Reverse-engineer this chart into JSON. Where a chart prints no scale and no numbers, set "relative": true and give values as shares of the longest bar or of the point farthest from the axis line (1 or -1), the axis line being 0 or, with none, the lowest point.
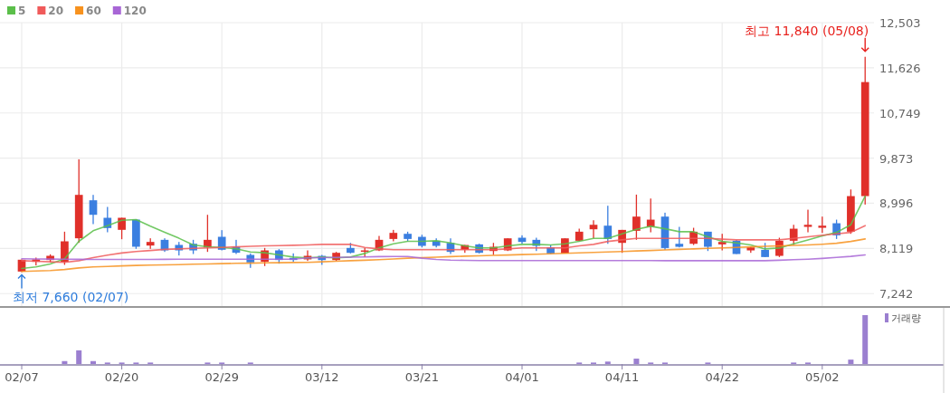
{
  "chart_data": [
    {
      "type": "candlestick",
      "categories": [
        "02/07",
        null,
        null,
        null,
        null,
        null,
        null,
        "02/20",
        null,
        null,
        null,
        null,
        null,
        null,
        "02/29",
        null,
        null,
        null,
        null,
        null,
        null,
        "03/12",
        null,
        null,
        null,
        null,
        null,
        null,
        "03/21",
        null,
        null,
        null,
        null,
        null,
        null,
        "04/01",
        null,
        null,
        null,
        null,
        null,
        null,
        "04/11",
        null,
        null,
        null,
        null,
        null,
        null,
        "04/22",
        null,
        null,
        null,
        null,
        null,
        null,
        "05/02",
        null,
        null,
        null
      ],
      "ohlc": [
        [
          7670,
          7905,
          7660,
          7900
        ],
        [
          7859,
          7941,
          7789,
          7906
        ],
        [
          7894,
          8005,
          7847,
          7976
        ],
        [
          7859,
          8444,
          7800,
          8257
        ],
        [
          8316,
          9850,
          8228,
          9159
        ],
        [
          9054,
          9159,
          8591,
          8772
        ],
        [
          8714,
          8925,
          8433,
          8515
        ],
        [
          8480,
          8714,
          8298,
          8714
        ],
        [
          8679,
          8679,
          8111,
          8152
        ],
        [
          8175,
          8316,
          8111,
          8245
        ],
        [
          8286,
          8316,
          8052,
          8081
        ],
        [
          8187,
          8245,
          7982,
          8081
        ],
        [
          8210,
          8286,
          8011,
          8081
        ],
        [
          8140,
          8772,
          8052,
          8286
        ],
        [
          8345,
          8474,
          8081,
          8093
        ],
        [
          8152,
          8286,
          8011,
          8035
        ],
        [
          7993,
          8023,
          7742,
          7847
        ],
        [
          7859,
          8128,
          7777,
          8081
        ],
        [
          8081,
          8105,
          7824,
          7894
        ],
        [
          7935,
          8023,
          7859,
          7894
        ],
        [
          7906,
          8081,
          7876,
          7976
        ],
        [
          7975,
          7993,
          7800,
          7893
        ],
        [
          7893,
          8052,
          7876,
          8034
        ],
        [
          8128,
          8227,
          8022,
          8034
        ],
        [
          8058,
          8128,
          7952,
          8081
        ],
        [
          8081,
          8362,
          8069,
          8286
        ],
        [
          8303,
          8479,
          8257,
          8421
        ],
        [
          8403,
          8444,
          8257,
          8303
        ],
        [
          8344,
          8385,
          8139,
          8169
        ],
        [
          8268,
          8315,
          8139,
          8169
        ],
        [
          8227,
          8315,
          8011,
          8052
        ],
        [
          8093,
          8186,
          8034,
          8186
        ],
        [
          8198,
          8210,
          8022,
          8034
        ],
        [
          8069,
          8227,
          7993,
          8151
        ],
        [
          8081,
          8315,
          8069,
          8315
        ],
        [
          8327,
          8374,
          8210,
          8245
        ],
        [
          8286,
          8327,
          8069,
          8169
        ],
        [
          8139,
          8186,
          8011,
          8022
        ],
        [
          8022,
          8315,
          8022,
          8315
        ],
        [
          8268,
          8503,
          8257,
          8444
        ],
        [
          8491,
          8666,
          8315,
          8578
        ],
        [
          8561,
          8948,
          8209,
          8303
        ],
        [
          8227,
          8479,
          8034,
          8479
        ],
        [
          8461,
          9164,
          8286,
          8737
        ],
        [
          8538,
          9088,
          8432,
          8678
        ],
        [
          8737,
          8813,
          8092,
          8127
        ],
        [
          8209,
          8538,
          8139,
          8151
        ],
        [
          8209,
          8520,
          8186,
          8444
        ],
        [
          8444,
          8444,
          8069,
          8151
        ],
        [
          8198,
          8403,
          8081,
          8245
        ],
        [
          8268,
          8286,
          8011,
          8011
        ],
        [
          8081,
          8151,
          8034,
          8139
        ],
        [
          8092,
          8227,
          7952,
          7952
        ],
        [
          7975,
          8327,
          7952,
          8268
        ],
        [
          8268,
          8578,
          8186,
          8502
        ],
        [
          8538,
          8871,
          8432,
          8578
        ],
        [
          8520,
          8737,
          8420,
          8561
        ],
        [
          8608,
          8678,
          8303,
          8374
        ],
        [
          8444,
          9264,
          8403,
          9135
        ],
        [
          9135,
          11840,
          8971,
          11349
        ]
      ],
      "colors": [
        "#e0302a",
        "#e0302a",
        "#e0302a",
        "#e0302a",
        "#e0302a",
        "#3b7fe0",
        "#3b7fe0",
        "#e0302a",
        "#3b7fe0",
        "#e0302a",
        "#3b7fe0",
        "#3b7fe0",
        "#3b7fe0",
        "#e0302a",
        "#3b7fe0",
        "#3b7fe0",
        "#3b7fe0",
        "#e0302a",
        "#3b7fe0",
        "#3b7fe0",
        "#e0302a",
        "#3b7fe0",
        "#e0302a",
        "#3b7fe0",
        "#e0302a",
        "#e0302a",
        "#e0302a",
        "#3b7fe0",
        "#3b7fe0",
        "#3b7fe0",
        "#3b7fe0",
        "#e0302a",
        "#3b7fe0",
        "#e0302a",
        "#e0302a",
        "#3b7fe0",
        "#3b7fe0",
        "#3b7fe0",
        "#e0302a",
        "#e0302a",
        "#e0302a",
        "#3b7fe0",
        "#e0302a",
        "#e0302a",
        "#e0302a",
        "#3b7fe0",
        "#3b7fe0",
        "#e0302a",
        "#3b7fe0",
        "#e0302a",
        "#3b7fe0",
        "#e0302a",
        "#3b7fe0",
        "#e0302a",
        "#e0302a",
        "#e0302a",
        "#e0302a",
        "#3b7fe0",
        "#e0302a",
        "#e0302a"
      ],
      "series": [
        {
          "name": "5",
          "type": "line",
          "color": "#5bbf4a",
          "values": [
            7730,
            7760,
            7818,
            7917,
            8257,
            8462,
            8561,
            8667,
            8679,
            8550,
            8433,
            8316,
            8187,
            8152,
            8140,
            8111,
            8052,
            8035,
            7993,
            7952,
            7935,
            7952,
            7935,
            7952,
            8022,
            8128,
            8210,
            8257,
            8257,
            8268,
            8227,
            8169,
            8128,
            8128,
            8169,
            8198,
            8198,
            8186,
            8210,
            8257,
            8315,
            8315,
            8403,
            8491,
            8549,
            8502,
            8444,
            8444,
            8345,
            8256,
            8227,
            8186,
            8110,
            8127,
            8209,
            8286,
            8362,
            8432,
            8578,
            9135
          ]
        },
        {
          "name": "20",
          "type": "line",
          "color": "#f05a5a",
          "values": [
            7880,
            7870,
            7860,
            7850,
            7880,
            7940,
            7990,
            8030,
            8060,
            8080,
            8100,
            8110,
            8120,
            8130,
            8140,
            8150,
            8160,
            8170,
            8175,
            8180,
            8187,
            8198,
            8198,
            8198,
            8139,
            8110,
            8093,
            8093,
            8093,
            8093,
            8093,
            8093,
            8093,
            8093,
            8110,
            8128,
            8128,
            8128,
            8128,
            8169,
            8198,
            8256,
            8286,
            8315,
            8315,
            8315,
            8315,
            8315,
            8315,
            8300,
            8286,
            8286,
            8286,
            8286,
            8315,
            8345,
            8374,
            8403,
            8432,
            8561
          ]
        },
        {
          "name": "60",
          "type": "line",
          "color": "#f7921e",
          "values": [
            7671,
            7680,
            7690,
            7710,
            7740,
            7760,
            7770,
            7780,
            7789,
            7795,
            7800,
            7806,
            7812,
            7818,
            7824,
            7829,
            7834,
            7838,
            7842,
            7845,
            7850,
            7860,
            7870,
            7880,
            7890,
            7900,
            7915,
            7930,
            7940,
            7950,
            7960,
            7968,
            7976,
            7984,
            7992,
            8000,
            8008,
            8016,
            8024,
            8032,
            8040,
            8050,
            8060,
            8070,
            8080,
            8090,
            8100,
            8110,
            8120,
            8130,
            8139,
            8150,
            8160,
            8170,
            8178,
            8186,
            8200,
            8220,
            8256,
            8303
          ]
        },
        {
          "name": "120",
          "type": "line",
          "color": "#a866d6",
          "values": [
            7917,
            7915,
            7912,
            7910,
            7908,
            7906,
            7905,
            7905,
            7905,
            7905,
            7908,
            7910,
            7910,
            7910,
            7910,
            7910,
            7910,
            7910,
            7910,
            7910,
            7935,
            7940,
            7945,
            7950,
            7955,
            7960,
            7962,
            7964,
            7930,
            7905,
            7893,
            7888,
            7885,
            7885,
            7885,
            7885,
            7885,
            7885,
            7885,
            7885,
            7885,
            7885,
            7885,
            7885,
            7885,
            7880,
            7880,
            7880,
            7880,
            7880,
            7880,
            7880,
            7880,
            7890,
            7900,
            7910,
            7925,
            7945,
            7965,
            7993
          ]
        }
      ],
      "ylim": [
        7000,
        12503
      ],
      "yticks": [
        {
          "value": 7242,
          "label": "7,242"
        },
        {
          "value": 8119,
          "label": "8,119"
        },
        {
          "value": 8996,
          "label": "8,996"
        },
        {
          "value": 9873,
          "label": "9,873"
        },
        {
          "value": 10749,
          "label": "10,749"
        },
        {
          "value": 11626,
          "label": "11,626"
        },
        {
          "value": 12503,
          "label": "12,503"
        }
      ],
      "grid": true,
      "legend": "top left",
      "tick_labels": "y",
      "annotations": [
        "최고 11,840 (05/08)",
        {
          "text": "최저 7,660 (02/07)",
          "x": "02/07",
          "y": 7660
        }
      ]
    },
    {
      "type": "bar",
      "categories": [
        "02/07",
        null,
        null,
        null,
        null,
        null,
        null,
        "02/20",
        null,
        null,
        null,
        null,
        null,
        null,
        "02/29",
        null,
        null,
        null,
        null,
        null,
        null,
        "03/12",
        null,
        null,
        null,
        null,
        null,
        null,
        "03/21",
        null,
        null,
        null,
        null,
        null,
        null,
        "04/01",
        null,
        null,
        null,
        null,
        null,
        null,
        "04/11",
        null,
        null,
        null,
        null,
        null,
        null,
        "04/22",
        null,
        null,
        null,
        null,
        null,
        null,
        "05/02",
        null,
        null,
        null
      ],
      "series": [
        {
          "name": "거래량",
          "color": "#9b7fd0",
          "values": [
            0,
            0,
            0,
            0.06,
            0.28,
            0.06,
            0.03,
            0.03,
            0.03,
            0.03,
            0,
            0,
            0,
            0.03,
            0.03,
            0,
            0.03,
            0,
            0,
            0,
            0,
            0,
            0,
            0,
            0,
            0,
            0,
            0,
            0,
            0,
            0,
            0,
            0,
            0,
            0,
            0,
            0,
            0,
            0,
            0.03,
            0.03,
            0.05,
            0,
            0.11,
            0.03,
            0.03,
            0,
            0,
            0.03,
            0,
            0,
            0,
            0,
            0,
            0.03,
            0.03,
            0,
            0,
            0.09,
            1
          ]
        }
      ],
      "relative": true,
      "tick_labels": "x",
      "legend": "top right"
    }
  ]
}
